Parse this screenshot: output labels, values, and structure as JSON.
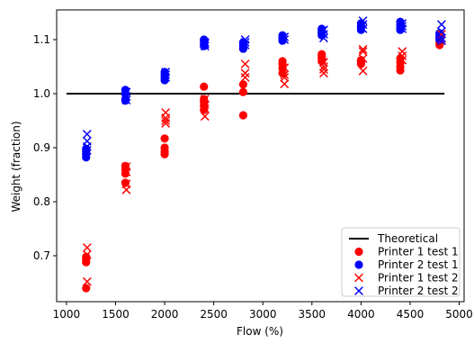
{
  "chart_data": {
    "type": "scatter",
    "xlabel": "Flow (%)",
    "ylabel": "Weight (fraction)",
    "xlim": [
      900,
      5050
    ],
    "ylim": [
      0.615,
      1.155
    ],
    "xticks": [
      1000,
      1500,
      2000,
      2500,
      3000,
      3500,
      4000,
      4500,
      5000
    ],
    "yticks": [
      0.7,
      0.8,
      0.9,
      1.0,
      1.1
    ],
    "xtick_labels": [
      "1000",
      "1500",
      "2000",
      "2500",
      "3000",
      "3500",
      "4000",
      "4500",
      "5000"
    ],
    "ytick_labels": [
      "0.7",
      "0.8",
      "0.9",
      "1.0",
      "1.1"
    ],
    "grid": false,
    "legend_position": "lower-right",
    "theoretical": {
      "name": "Theoretical",
      "y": 1.0,
      "x": [
        1000,
        4850
      ],
      "color": "#000000"
    },
    "series": [
      {
        "name": "Printer 1 test 1",
        "marker": "circle",
        "color": "#ff0000",
        "points": [
          [
            1200,
            0.64
          ],
          [
            1200,
            0.688
          ],
          [
            1200,
            0.693
          ],
          [
            1200,
            0.698
          ],
          [
            1600,
            0.835
          ],
          [
            1600,
            0.852
          ],
          [
            1600,
            0.86
          ],
          [
            1600,
            0.866
          ],
          [
            2000,
            0.888
          ],
          [
            2000,
            0.893
          ],
          [
            2000,
            0.9
          ],
          [
            2000,
            0.917
          ],
          [
            2400,
            0.97
          ],
          [
            2400,
            0.978
          ],
          [
            2400,
            0.985
          ],
          [
            2400,
            0.99
          ],
          [
            2400,
            1.013
          ],
          [
            2800,
            0.96
          ],
          [
            2800,
            1.003
          ],
          [
            2800,
            1.017
          ],
          [
            3200,
            1.038
          ],
          [
            3200,
            1.047
          ],
          [
            3200,
            1.055
          ],
          [
            3200,
            1.06
          ],
          [
            3600,
            1.06
          ],
          [
            3600,
            1.065
          ],
          [
            3600,
            1.068
          ],
          [
            3600,
            1.073
          ],
          [
            4000,
            1.055
          ],
          [
            4000,
            1.058
          ],
          [
            4000,
            1.06
          ],
          [
            4000,
            1.062
          ],
          [
            4400,
            1.043
          ],
          [
            4400,
            1.05
          ],
          [
            4400,
            1.058
          ],
          [
            4400,
            1.065
          ],
          [
            4800,
            1.09
          ],
          [
            4800,
            1.095
          ],
          [
            4800,
            1.1
          ],
          [
            4800,
            1.105
          ]
        ]
      },
      {
        "name": "Printer 2 test 1",
        "marker": "circle",
        "color": "#0000ff",
        "points": [
          [
            1200,
            0.882
          ],
          [
            1200,
            0.888
          ],
          [
            1200,
            0.893
          ],
          [
            1200,
            0.898
          ],
          [
            1600,
            0.987
          ],
          [
            1600,
            0.99
          ],
          [
            1600,
            1.0
          ],
          [
            1600,
            1.007
          ],
          [
            2000,
            1.025
          ],
          [
            2000,
            1.03
          ],
          [
            2000,
            1.035
          ],
          [
            2000,
            1.04
          ],
          [
            2400,
            1.088
          ],
          [
            2400,
            1.092
          ],
          [
            2400,
            1.097
          ],
          [
            2400,
            1.1
          ],
          [
            2800,
            1.083
          ],
          [
            2800,
            1.088
          ],
          [
            2800,
            1.092
          ],
          [
            2800,
            1.095
          ],
          [
            3200,
            1.098
          ],
          [
            3200,
            1.102
          ],
          [
            3200,
            1.105
          ],
          [
            3200,
            1.108
          ],
          [
            3600,
            1.108
          ],
          [
            3600,
            1.112
          ],
          [
            3600,
            1.116
          ],
          [
            3600,
            1.12
          ],
          [
            4000,
            1.118
          ],
          [
            4000,
            1.122
          ],
          [
            4000,
            1.125
          ],
          [
            4000,
            1.13
          ],
          [
            4400,
            1.118
          ],
          [
            4400,
            1.122
          ],
          [
            4400,
            1.127
          ],
          [
            4400,
            1.133
          ],
          [
            4800,
            1.1
          ],
          [
            4800,
            1.104
          ],
          [
            4800,
            1.108
          ],
          [
            4800,
            1.112
          ]
        ]
      },
      {
        "name": "Printer 1 test 2",
        "marker": "x",
        "color": "#ff0000",
        "points": [
          [
            1210,
            0.652
          ],
          [
            1210,
            0.702
          ],
          [
            1210,
            0.715
          ],
          [
            1610,
            0.822
          ],
          [
            1610,
            0.833
          ],
          [
            1610,
            0.855
          ],
          [
            1610,
            0.865
          ],
          [
            2010,
            0.945
          ],
          [
            2010,
            0.95
          ],
          [
            2010,
            0.955
          ],
          [
            2010,
            0.965
          ],
          [
            2410,
            0.958
          ],
          [
            2410,
            0.972
          ],
          [
            2410,
            0.98
          ],
          [
            2410,
            0.99
          ],
          [
            2820,
            1.03
          ],
          [
            2820,
            1.038
          ],
          [
            2820,
            1.055
          ],
          [
            3220,
            1.018
          ],
          [
            3220,
            1.03
          ],
          [
            3220,
            1.035
          ],
          [
            3220,
            1.048
          ],
          [
            3620,
            1.038
          ],
          [
            3620,
            1.045
          ],
          [
            3620,
            1.05
          ],
          [
            3620,
            1.058
          ],
          [
            4020,
            1.042
          ],
          [
            4020,
            1.065
          ],
          [
            4020,
            1.078
          ],
          [
            4020,
            1.082
          ],
          [
            4420,
            1.062
          ],
          [
            4420,
            1.07
          ],
          [
            4420,
            1.078
          ],
          [
            4820,
            1.098
          ],
          [
            4820,
            1.102
          ],
          [
            4820,
            1.11
          ]
        ]
      },
      {
        "name": "Printer 2 test 2",
        "marker": "x",
        "color": "#0000ff",
        "points": [
          [
            1210,
            0.895
          ],
          [
            1210,
            0.902
          ],
          [
            1210,
            0.912
          ],
          [
            1210,
            0.925
          ],
          [
            1610,
            0.988
          ],
          [
            1610,
            0.995
          ],
          [
            1610,
            1.003
          ],
          [
            2010,
            1.03
          ],
          [
            2010,
            1.035
          ],
          [
            2010,
            1.04
          ],
          [
            2410,
            1.088
          ],
          [
            2410,
            1.092
          ],
          [
            2410,
            1.095
          ],
          [
            2820,
            1.09
          ],
          [
            2820,
            1.095
          ],
          [
            2820,
            1.1
          ],
          [
            3220,
            1.1
          ],
          [
            3220,
            1.105
          ],
          [
            3620,
            1.103
          ],
          [
            3620,
            1.11
          ],
          [
            3620,
            1.118
          ],
          [
            4020,
            1.12
          ],
          [
            4020,
            1.128
          ],
          [
            4020,
            1.135
          ],
          [
            4420,
            1.12
          ],
          [
            4420,
            1.125
          ],
          [
            4420,
            1.13
          ],
          [
            4820,
            1.098
          ],
          [
            4820,
            1.103
          ],
          [
            4820,
            1.115
          ],
          [
            4820,
            1.128
          ]
        ]
      }
    ]
  }
}
